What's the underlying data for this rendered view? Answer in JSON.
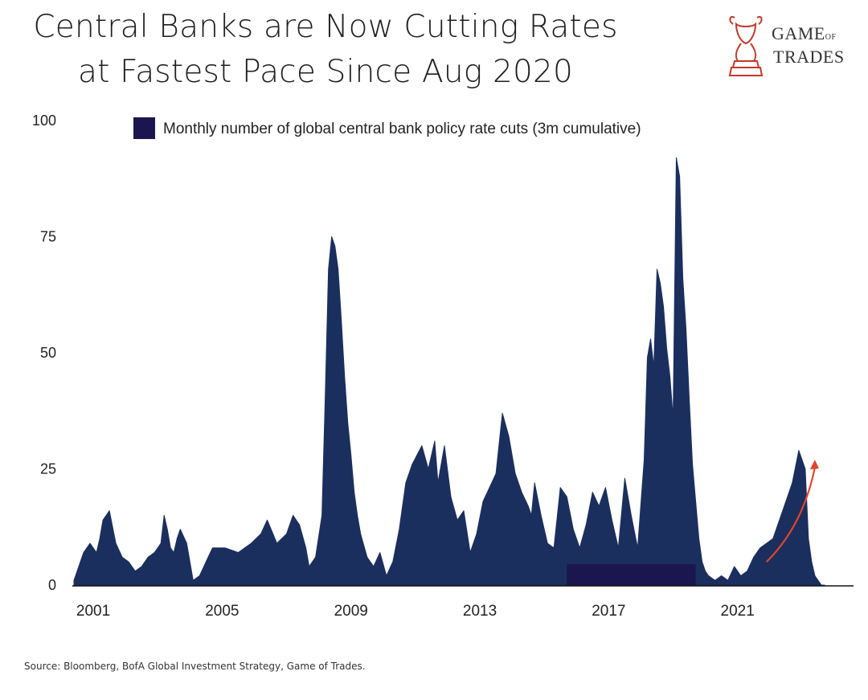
{
  "header": {
    "title_line1": "Central Banks are Now Cutting Rates",
    "title_line2": "at Fastest Pace Since Aug 2020"
  },
  "logo": {
    "line1_main": "GAME",
    "line1_small": "OF",
    "line2": "TRADES",
    "icon": "bull-knight-icon",
    "accent": "#c0392b"
  },
  "footer": {
    "source": "Source: Bloomberg, BofA Global Investment Strategy, Game of Trades."
  },
  "colors": {
    "area": "#1b2f5e",
    "legend_swatch": "#1c1650",
    "arrow": "#e0452e",
    "axis": "#111111"
  },
  "chart_data": {
    "type": "area",
    "title": "",
    "xlabel": "",
    "ylabel": "",
    "ylim": [
      0,
      100
    ],
    "yticks": [
      0,
      25,
      50,
      75,
      100
    ],
    "xticks": [
      "2001",
      "2005",
      "2009",
      "2013",
      "2017",
      "2021"
    ],
    "xlim": [
      2000.7,
      2024.9
    ],
    "legend": {
      "label": "Monthly number of global central bank policy rate cuts (3m cumulative)",
      "placement": "top"
    },
    "annotation": {
      "type": "arrow",
      "from": [
        2022.2,
        5
      ],
      "to": [
        2023.7,
        27
      ]
    },
    "series": [
      {
        "name": "Monthly number of global central bank policy rate cuts (3m cumulative)",
        "x": [
          2000.7,
          2000.8,
          2000.9,
          2001.0,
          2001.1,
          2001.2,
          2001.3,
          2001.4,
          2001.5,
          2001.6,
          2001.8,
          2002.0,
          2002.2,
          2002.4,
          2002.6,
          2002.8,
          2003.0,
          2003.2,
          2003.4,
          2003.5,
          2003.6,
          2003.7,
          2003.8,
          2003.9,
          2004.0,
          2004.2,
          2004.4,
          2004.6,
          2004.8,
          2005.0,
          2005.4,
          2005.8,
          2006.2,
          2006.5,
          2006.7,
          2007.0,
          2007.3,
          2007.5,
          2007.7,
          2007.9,
          2008.0,
          2008.2,
          2008.4,
          2008.5,
          2008.6,
          2008.7,
          2008.8,
          2008.9,
          2009.0,
          2009.1,
          2009.2,
          2009.3,
          2009.4,
          2009.5,
          2009.6,
          2009.8,
          2010.0,
          2010.2,
          2010.4,
          2010.6,
          2010.8,
          2011.0,
          2011.2,
          2011.5,
          2011.7,
          2011.9,
          2012.0,
          2012.2,
          2012.4,
          2012.6,
          2012.8,
          2013.0,
          2013.2,
          2013.4,
          2013.6,
          2013.8,
          2014.0,
          2014.2,
          2014.4,
          2014.6,
          2014.8,
          2014.9,
          2015.0,
          2015.2,
          2015.4,
          2015.6,
          2015.8,
          2016.0,
          2016.2,
          2016.4,
          2016.6,
          2016.8,
          2017.0,
          2017.2,
          2017.4,
          2017.6,
          2017.8,
          2018.0,
          2018.2,
          2018.4,
          2018.5,
          2018.6,
          2018.7,
          2018.8,
          2018.9,
          2019.0,
          2019.1,
          2019.2,
          2019.3,
          2019.4,
          2019.5,
          2019.6,
          2019.7,
          2019.8,
          2019.9,
          2020.0,
          2020.1,
          2020.2,
          2020.3,
          2020.4,
          2020.6,
          2020.8,
          2021.0,
          2021.2,
          2021.4,
          2021.6,
          2021.8,
          2022.0,
          2022.2,
          2022.4,
          2022.6,
          2022.8,
          2023.0,
          2023.2,
          2023.4,
          2023.5,
          2023.6,
          2023.7,
          2023.8,
          2023.9,
          2024.0
        ],
        "values": [
          1,
          3,
          5,
          7,
          8,
          9,
          8,
          7,
          10,
          14,
          16,
          9,
          6,
          5,
          3,
          4,
          6,
          7,
          9,
          15,
          12,
          8,
          7,
          10,
          12,
          9,
          1,
          2,
          5,
          8,
          8,
          7,
          9,
          11,
          14,
          9,
          11,
          15,
          13,
          8,
          4,
          6,
          15,
          40,
          68,
          75,
          73,
          68,
          57,
          45,
          35,
          28,
          20,
          15,
          11,
          6,
          4,
          7,
          2,
          5,
          12,
          22,
          26,
          30,
          25,
          31,
          22,
          30,
          19,
          14,
          16,
          7,
          11,
          18,
          21,
          24,
          37,
          32,
          24,
          20,
          17,
          15,
          22,
          15,
          9,
          8,
          21,
          19,
          12,
          8,
          13,
          20,
          17,
          21,
          14,
          8,
          23,
          15,
          8,
          27,
          49,
          53,
          47,
          68,
          65,
          60,
          51,
          45,
          36,
          92,
          88,
          66,
          55,
          40,
          26,
          18,
          10,
          5,
          3,
          2,
          1,
          2,
          1,
          4,
          2,
          3,
          6,
          8,
          9,
          10,
          14,
          18,
          22,
          29,
          25,
          10,
          5,
          2,
          1,
          0,
          0
        ]
      }
    ],
    "highlight_band": {
      "x": [
        2016.0,
        2020.0
      ],
      "y": [
        0,
        4.5
      ]
    }
  }
}
